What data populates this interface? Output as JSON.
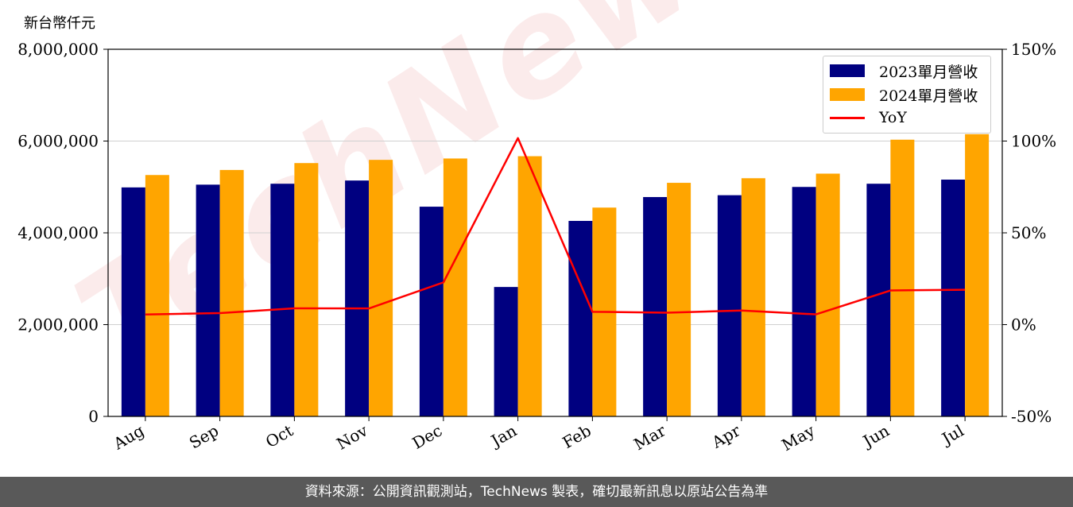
{
  "chart_data": {
    "type": "bar",
    "unit_label": "新台幣仟元",
    "categories": [
      "Aug",
      "Sep",
      "Oct",
      "Nov",
      "Dec",
      "Jan",
      "Feb",
      "Mar",
      "Apr",
      "May",
      "Jun",
      "Jul"
    ],
    "series": [
      {
        "name": "2023單月營收",
        "type": "bar",
        "axis": "left",
        "color": "#000080",
        "values": [
          4990000,
          5050000,
          5070000,
          5140000,
          4570000,
          2820000,
          4260000,
          4780000,
          4820000,
          5000000,
          5070000,
          5160000
        ]
      },
      {
        "name": "2024單月營收",
        "type": "bar",
        "axis": "left",
        "color": "#FFA500",
        "values": [
          5260000,
          5370000,
          5520000,
          5590000,
          5620000,
          5670000,
          4550000,
          5090000,
          5190000,
          5290000,
          6030000,
          6150000
        ]
      },
      {
        "name": "YoY",
        "type": "line",
        "axis": "right",
        "color": "#FF0000",
        "values": [
          5.5,
          6.3,
          8.9,
          8.8,
          23.0,
          101.6,
          7.0,
          6.5,
          7.7,
          5.6,
          18.6,
          19.0
        ]
      }
    ],
    "y_left": {
      "lim": [
        0,
        8000000
      ],
      "ticks": [
        0,
        2000000,
        4000000,
        6000000,
        8000000
      ],
      "tick_labels": [
        "0",
        "2,000,000",
        "4,000,000",
        "6,000,000",
        "8,000,000"
      ]
    },
    "y_right": {
      "lim": [
        -50,
        150
      ],
      "ticks": [
        -50,
        0,
        50,
        100,
        150
      ],
      "tick_labels": [
        "-50%",
        "0%",
        "50%",
        "100%",
        "150%"
      ]
    },
    "grid": "horizontal",
    "legend_position": "top-right",
    "watermark": "TechNews"
  },
  "footer": {
    "source": "資料來源：公開資訊觀測站，TechNews 製表，確切最新訊息以原站公告為準"
  }
}
